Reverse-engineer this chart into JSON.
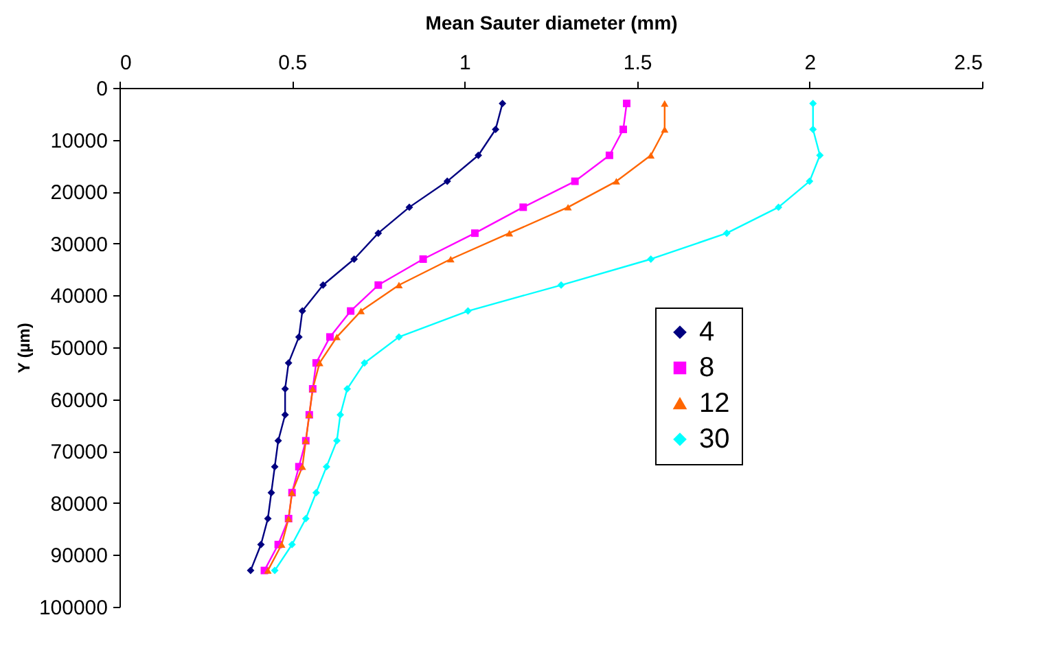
{
  "chart_data": {
    "type": "line",
    "xlabel": "Mean Sauter diameter (mm)",
    "ylabel": "Y (µm)",
    "xlim": [
      0,
      2.5
    ],
    "xticks": [
      0,
      0.5,
      1,
      1.5,
      2,
      2.5
    ],
    "ylim": [
      100000,
      0
    ],
    "yticks": [
      0,
      10000,
      20000,
      30000,
      40000,
      50000,
      60000,
      70000,
      80000,
      90000,
      100000
    ],
    "grid": false,
    "legend": "right",
    "line_style": "solid",
    "series": [
      {
        "name": "4",
        "color": "#000080",
        "marker": "diamond",
        "x": [
          1.11,
          1.09,
          1.04,
          0.95,
          0.84,
          0.75,
          0.68,
          0.59,
          0.53,
          0.52,
          0.49,
          0.48,
          0.48,
          0.46,
          0.45,
          0.44,
          0.43,
          0.41,
          0.38
        ],
        "values": [
          3000,
          8000,
          13000,
          18000,
          23000,
          28000,
          33000,
          38000,
          43000,
          48000,
          53000,
          58000,
          63000,
          68000,
          73000,
          78000,
          83000,
          88000,
          93000
        ]
      },
      {
        "name": "8",
        "color": "#ff00ff",
        "marker": "square",
        "x": [
          1.47,
          1.46,
          1.42,
          1.32,
          1.17,
          1.03,
          0.88,
          0.75,
          0.67,
          0.61,
          0.57,
          0.56,
          0.55,
          0.54,
          0.52,
          0.5,
          0.49,
          0.46,
          0.42
        ],
        "values": [
          3000,
          8000,
          13000,
          18000,
          23000,
          28000,
          33000,
          38000,
          43000,
          48000,
          53000,
          58000,
          63000,
          68000,
          73000,
          78000,
          83000,
          88000,
          93000
        ]
      },
      {
        "name": "12",
        "color": "#ff6600",
        "marker": "triangle",
        "x": [
          1.58,
          1.58,
          1.54,
          1.44,
          1.3,
          1.13,
          0.96,
          0.81,
          0.7,
          0.63,
          0.58,
          0.56,
          0.55,
          0.54,
          0.53,
          0.5,
          0.49,
          0.47,
          0.43
        ],
        "values": [
          3000,
          8000,
          13000,
          18000,
          23000,
          28000,
          33000,
          38000,
          43000,
          48000,
          53000,
          58000,
          63000,
          68000,
          73000,
          78000,
          83000,
          88000,
          93000
        ]
      },
      {
        "name": "30",
        "color": "#00ffff",
        "marker": "diamond",
        "x": [
          2.01,
          2.01,
          2.03,
          2.0,
          1.91,
          1.76,
          1.54,
          1.28,
          1.01,
          0.81,
          0.71,
          0.66,
          0.64,
          0.63,
          0.6,
          0.57,
          0.54,
          0.5,
          0.45
        ],
        "values": [
          3000,
          8000,
          13000,
          18000,
          23000,
          28000,
          33000,
          38000,
          43000,
          48000,
          53000,
          58000,
          63000,
          68000,
          73000,
          78000,
          83000,
          88000,
          93000
        ]
      }
    ]
  }
}
